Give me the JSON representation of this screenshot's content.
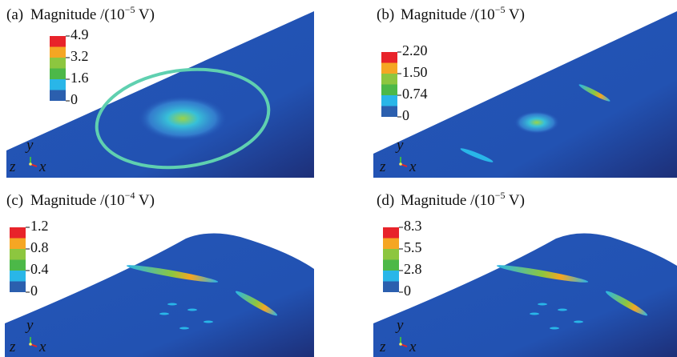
{
  "panels": [
    {
      "label": "(a)",
      "title": "Magnitude /(10",
      "exponent": "−5",
      "unit": " V)",
      "ticks": [
        "4.9",
        "3.2",
        "1.6",
        "0"
      ],
      "axes": [
        "y",
        "z",
        "x"
      ]
    },
    {
      "label": "(b)",
      "title": "Magnitude /(10",
      "exponent": "−5",
      "unit": " V)",
      "ticks": [
        "2.20",
        "1.50",
        "0.74",
        "0"
      ],
      "axes": [
        "y",
        "z",
        "x"
      ]
    },
    {
      "label": "(c)",
      "title": "Magnitude /(10",
      "exponent": "−4",
      "unit": " V)",
      "ticks": [
        "1.2",
        "0.8",
        "0.4",
        "0"
      ],
      "axes": [
        "y",
        "z",
        "x"
      ]
    },
    {
      "label": "(d)",
      "title": "Magnitude /(10",
      "exponent": "−5",
      "unit": " V)",
      "ticks": [
        "8.3",
        "5.5",
        "2.8",
        "0"
      ],
      "axes": [
        "y",
        "z",
        "x"
      ]
    }
  ]
}
